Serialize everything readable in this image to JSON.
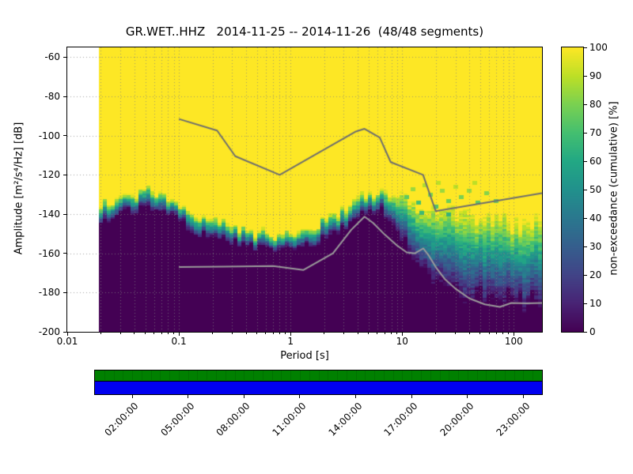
{
  "chart_data": {
    "type": "heatmap",
    "title": "GR.WET..HHZ   2014-11-25 -- 2014-11-26  (48/48 segments)",
    "station": "GR.WET..HHZ",
    "date_range": "2014-11-25 -- 2014-11-26",
    "segments_used": "48/48",
    "xlabel": "Period [s]",
    "ylabel": "Amplitude [m²/s⁴/Hz] [dB]",
    "x_scale": "log",
    "xlim": [
      0.01,
      179
    ],
    "ylim": [
      -200,
      -55
    ],
    "x_tick_values": [
      0.01,
      0.1,
      1,
      10,
      100
    ],
    "x_tick_labels": [
      "0.01",
      "0.1",
      "1",
      "10",
      "100"
    ],
    "y_tick_values": [
      -60,
      -80,
      -100,
      -120,
      -140,
      -160,
      -180,
      -200
    ],
    "grid": {
      "style": "dotted",
      "horizontal_db_step": 20,
      "vertical": "log-decades-and-minors"
    },
    "colorbar": {
      "label": "non-exceedance (cumulative) [%]",
      "ticks": [
        0,
        10,
        20,
        30,
        40,
        50,
        60,
        70,
        80,
        90,
        100
      ],
      "range": [
        0,
        100
      ]
    },
    "colormap_stops": [
      {
        "t": 0.0,
        "c": "#440154"
      },
      {
        "t": 0.1,
        "c": "#482475"
      },
      {
        "t": 0.2,
        "c": "#414487"
      },
      {
        "t": 0.3,
        "c": "#355f8d"
      },
      {
        "t": 0.4,
        "c": "#2a788e"
      },
      {
        "t": 0.5,
        "c": "#21918c"
      },
      {
        "t": 0.6,
        "c": "#22a884"
      },
      {
        "t": 0.7,
        "c": "#44bf70"
      },
      {
        "t": 0.8,
        "c": "#7ad151"
      },
      {
        "t": 0.9,
        "c": "#bddf26"
      },
      {
        "t": 1.0,
        "c": "#fde725"
      }
    ],
    "data_period_range": [
      0.02,
      179
    ],
    "distribution": [
      [
        0.02,
        -139,
        9
      ],
      [
        0.03,
        -136,
        9
      ],
      [
        0.05,
        -132,
        9
      ],
      [
        0.07,
        -134,
        9
      ],
      [
        0.1,
        -140,
        9
      ],
      [
        0.15,
        -145,
        9
      ],
      [
        0.25,
        -149,
        8
      ],
      [
        0.4,
        -152,
        8
      ],
      [
        0.6,
        -154,
        8
      ],
      [
        0.9,
        -155,
        8
      ],
      [
        1.3,
        -153,
        9
      ],
      [
        1.8,
        -149,
        10
      ],
      [
        2.6,
        -145,
        10
      ],
      [
        3.6,
        -140,
        10
      ],
      [
        4.8,
        -134,
        10
      ],
      [
        6.5,
        -133,
        11
      ],
      [
        8.5,
        -137,
        16
      ],
      [
        10.5,
        -143,
        24
      ],
      [
        13,
        -150,
        30
      ],
      [
        17,
        -155,
        34
      ],
      [
        22,
        -157,
        42
      ],
      [
        30,
        -159,
        44
      ],
      [
        45,
        -161,
        44
      ],
      [
        65,
        -163,
        42
      ],
      [
        95,
        -164,
        40
      ],
      [
        140,
        -164,
        40
      ],
      [
        179,
        -163,
        40
      ]
    ],
    "speckles": [
      [
        11,
        -131,
        0.75
      ],
      [
        12.5,
        -127,
        0.85
      ],
      [
        14,
        -134,
        0.7
      ],
      [
        16,
        -125,
        0.88
      ],
      [
        18,
        -130,
        0.8
      ],
      [
        20,
        -136,
        0.72
      ],
      [
        23,
        -128,
        0.85
      ],
      [
        26,
        -133,
        0.78
      ],
      [
        30,
        -126,
        0.9
      ],
      [
        34,
        -131,
        0.8
      ],
      [
        40,
        -128,
        0.85
      ],
      [
        48,
        -134,
        0.75
      ],
      [
        57,
        -129,
        0.82
      ],
      [
        70,
        -133,
        0.78
      ],
      [
        26,
        -140,
        0.65
      ],
      [
        45,
        -124,
        0.9
      ],
      [
        15,
        -139,
        0.68
      ],
      [
        21,
        -124,
        0.9
      ]
    ],
    "noise_models": {
      "high_color": "#6e6e6e",
      "low_color": "#9b9b9b",
      "high": [
        [
          0.1,
          -91.5
        ],
        [
          0.22,
          -97.4
        ],
        [
          0.32,
          -110.5
        ],
        [
          0.8,
          -120.0
        ],
        [
          3.8,
          -98.0
        ],
        [
          4.6,
          -96.5
        ],
        [
          6.3,
          -101.0
        ],
        [
          7.9,
          -113.5
        ],
        [
          15.4,
          -120.0
        ],
        [
          20.0,
          -138.5
        ],
        [
          179.0,
          -129.3
        ]
      ],
      "low": [
        [
          0.1,
          -167.0
        ],
        [
          0.25,
          -166.8
        ],
        [
          0.7,
          -166.5
        ],
        [
          1.3,
          -168.5
        ],
        [
          2.4,
          -160.0
        ],
        [
          3.5,
          -148.0
        ],
        [
          4.6,
          -141.3
        ],
        [
          5.5,
          -144.5
        ],
        [
          7.0,
          -150.5
        ],
        [
          9.0,
          -156.0
        ],
        [
          11.0,
          -159.5
        ],
        [
          13.0,
          -160.0
        ],
        [
          15.5,
          -157.5
        ],
        [
          17.5,
          -161.5
        ],
        [
          20.0,
          -167.0
        ],
        [
          24.0,
          -173.0
        ],
        [
          30.0,
          -178.0
        ],
        [
          40.0,
          -183.0
        ],
        [
          55.0,
          -186.0
        ],
        [
          75.0,
          -187.3
        ],
        [
          95.0,
          -185.3
        ],
        [
          130.0,
          -185.5
        ],
        [
          179.0,
          -185.3
        ]
      ]
    },
    "timeline": {
      "bar_colors": {
        "top": "#008000",
        "bottom": "#0000f0"
      },
      "hours_range": [
        0,
        24
      ],
      "segments": 48,
      "tick_hours": [
        2,
        5,
        8,
        11,
        14,
        17,
        20,
        23
      ],
      "tick_labels": [
        "02:00:00",
        "05:00:00",
        "08:00:00",
        "11:00:00",
        "14:00:00",
        "17:00:00",
        "20:00:00",
        "23:00:00"
      ]
    }
  }
}
